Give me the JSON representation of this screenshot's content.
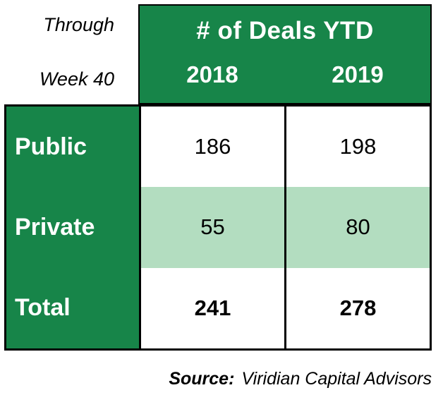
{
  "header": {
    "note_line1": "Through",
    "note_line2": "Week 40",
    "title": "# of Deals YTD",
    "columns": [
      "2018",
      "2019"
    ]
  },
  "rows": [
    {
      "label": "Public",
      "values": [
        "186",
        "198"
      ]
    },
    {
      "label": "Private",
      "values": [
        "55",
        "80"
      ]
    },
    {
      "label": "Total",
      "values": [
        "241",
        "278"
      ]
    }
  ],
  "footer": {
    "source_label": "Source:",
    "source_text": "Viridian Capital Advisors"
  },
  "colors": {
    "green": "#178549",
    "light_green": "#b3ddc0",
    "border": "#000000"
  },
  "chart_data": {
    "type": "table",
    "title": "# of Deals YTD",
    "subtitle": "Through Week 40",
    "columns": [
      "2018",
      "2019"
    ],
    "rows": [
      {
        "label": "Public",
        "2018": 186,
        "2019": 198
      },
      {
        "label": "Private",
        "2018": 55,
        "2019": 80
      },
      {
        "label": "Total",
        "2018": 241,
        "2019": 278
      }
    ],
    "source": "Viridian Capital Advisors",
    "legend_position": "none",
    "grid": true
  }
}
